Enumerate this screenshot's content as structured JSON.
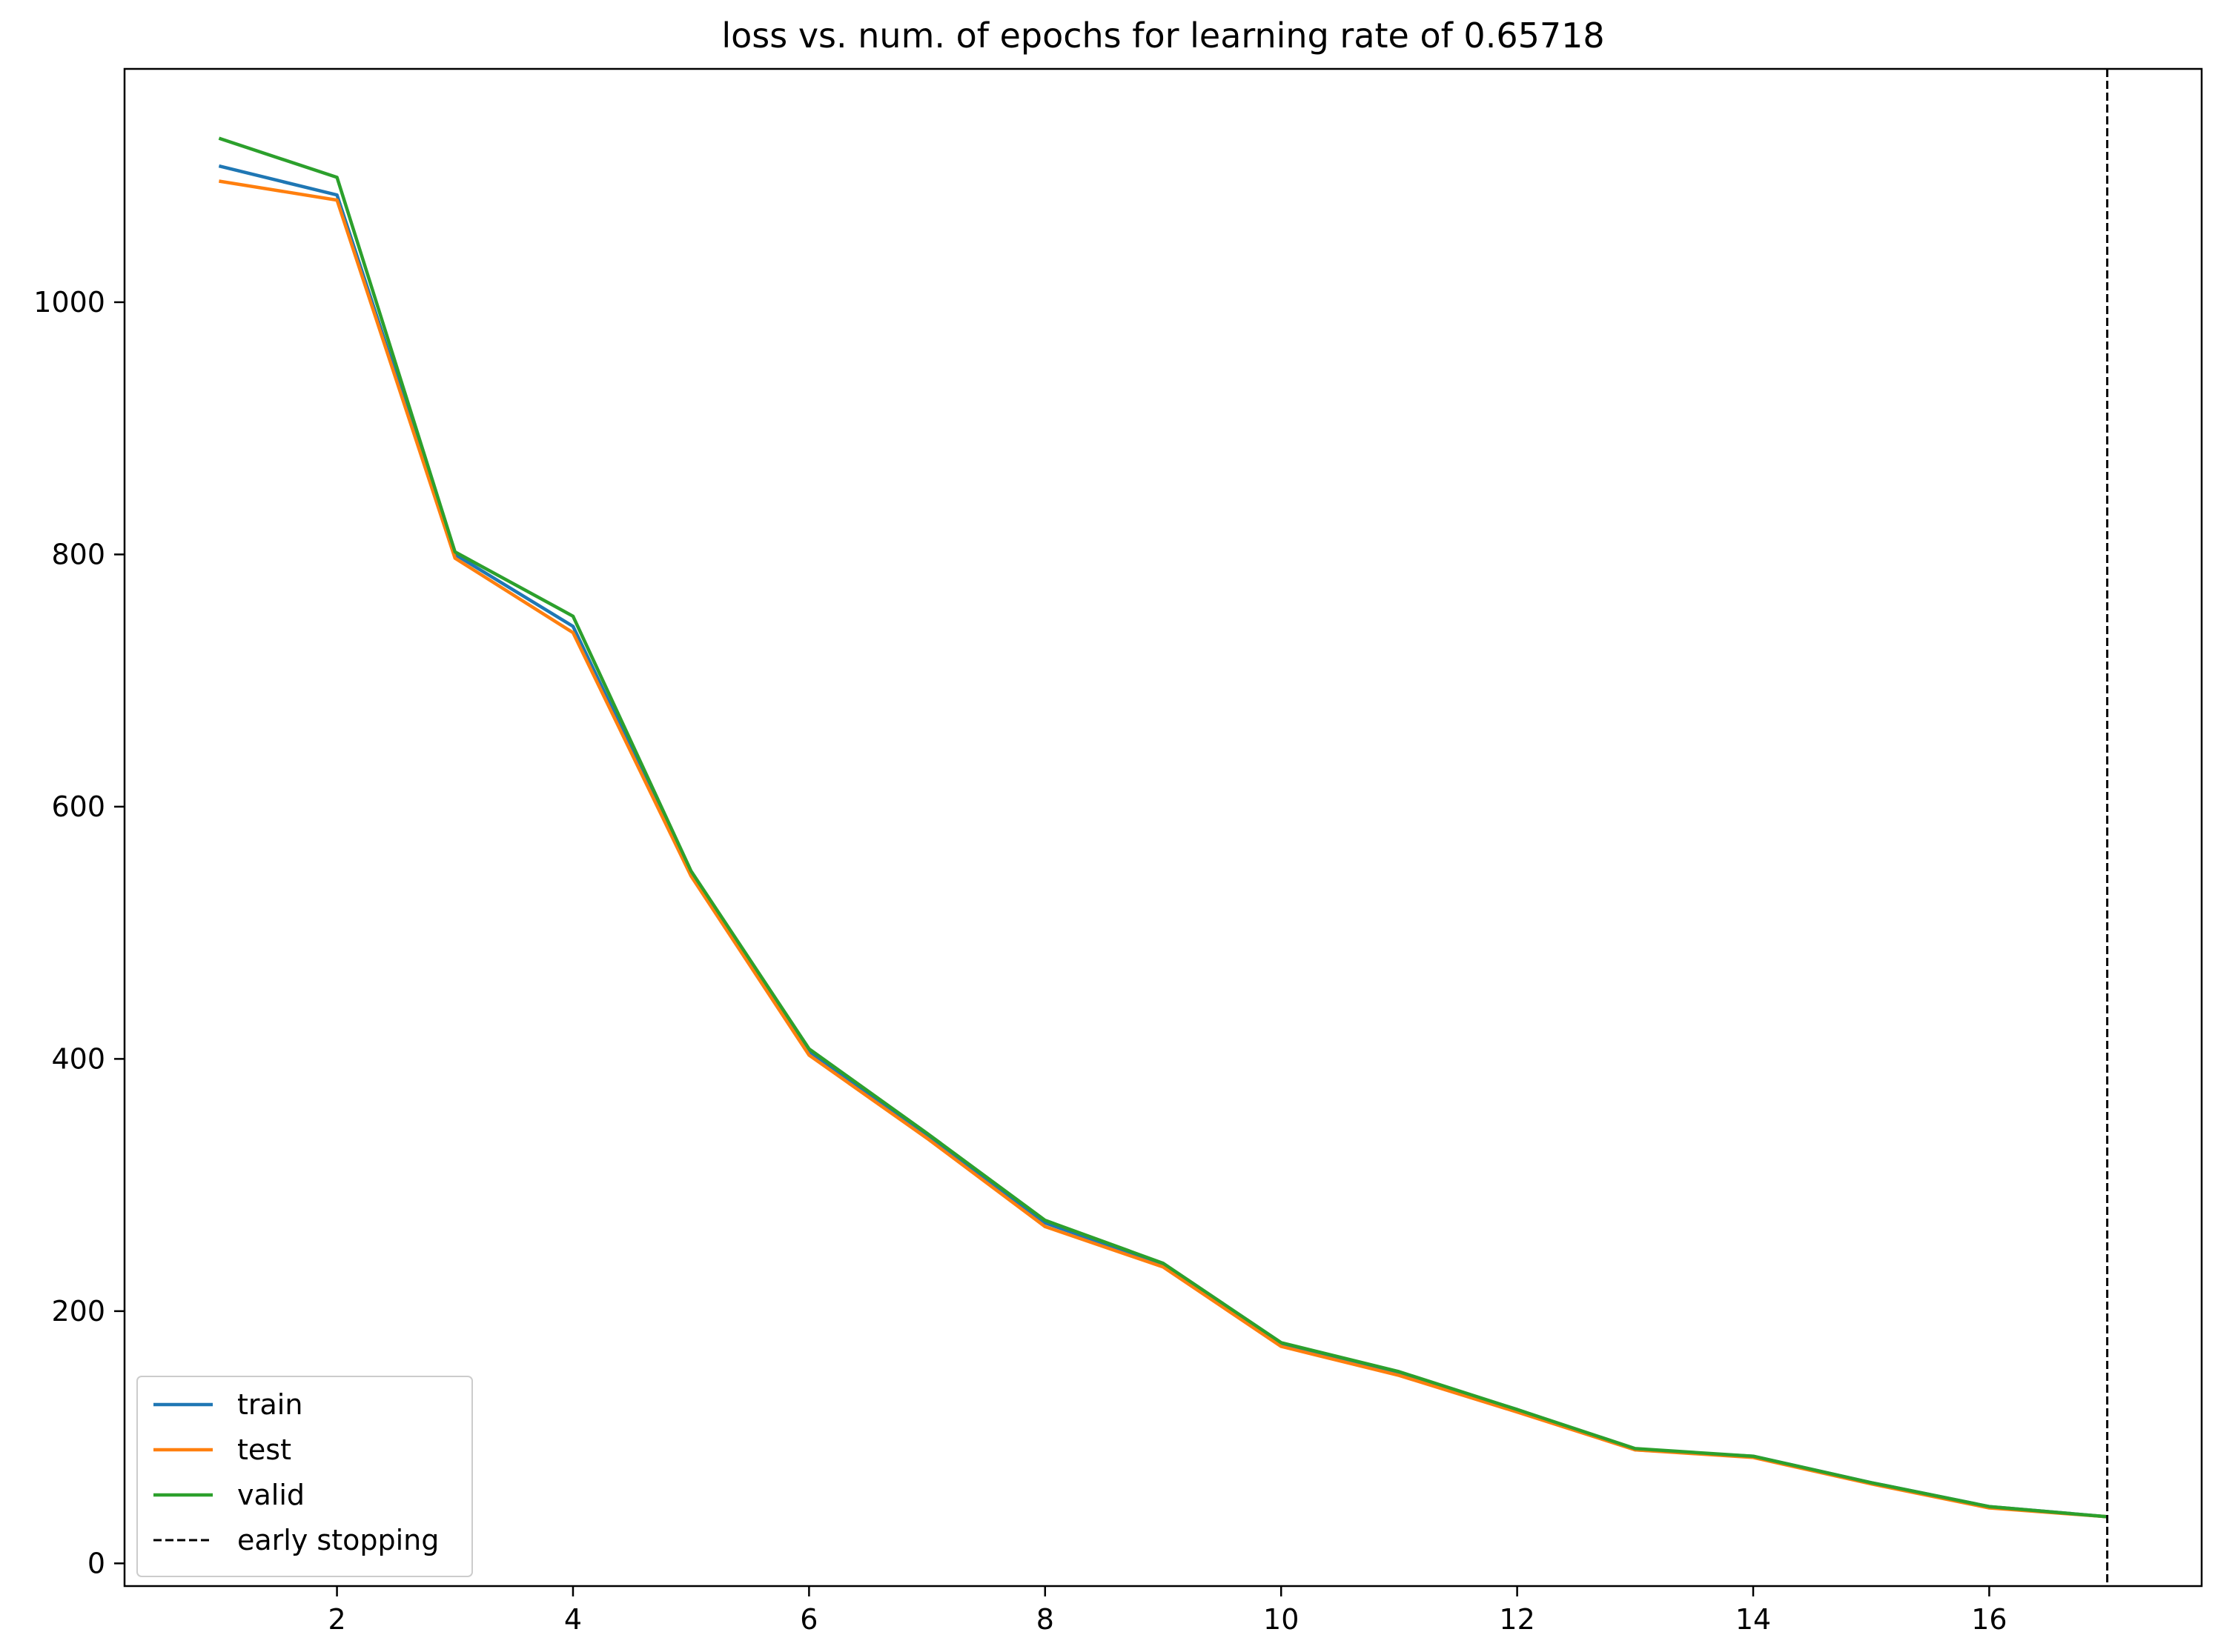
{
  "chart_data": {
    "type": "line",
    "title": "loss vs. num. of epochs for learning rate of 0.65718",
    "xlabel": "",
    "ylabel": "",
    "xlim": [
      0.2,
      17.8
    ],
    "ylim": [
      -18,
      1185
    ],
    "xticks": [
      2,
      4,
      6,
      8,
      10,
      12,
      14,
      16
    ],
    "yticks": [
      0,
      200,
      400,
      600,
      800,
      1000
    ],
    "grid": false,
    "legend_position": "lower-left",
    "x": [
      1,
      2,
      3,
      4,
      5,
      6,
      7,
      8,
      9,
      10,
      11,
      12,
      13,
      14,
      15,
      16,
      17
    ],
    "series": [
      {
        "name": "train",
        "color": "#1f77b4",
        "values": [
          1108,
          1085,
          800,
          743,
          547,
          406,
          340,
          270,
          237,
          174,
          151,
          122,
          90,
          85,
          64,
          45,
          37
        ]
      },
      {
        "name": "test",
        "color": "#ff7f0e",
        "values": [
          1096,
          1081,
          797,
          738,
          545,
          403,
          337,
          267,
          235,
          172,
          149,
          120,
          90,
          84,
          63,
          44,
          37
        ]
      },
      {
        "name": "valid",
        "color": "#2ca02c",
        "values": [
          1130,
          1099,
          802,
          751,
          549,
          408,
          341,
          272,
          238,
          175,
          152,
          122,
          91,
          85,
          64,
          45,
          37
        ]
      }
    ],
    "vlines": [
      {
        "name": "early stopping",
        "x": 17,
        "color": "#000000",
        "style": "dashed"
      }
    ]
  }
}
